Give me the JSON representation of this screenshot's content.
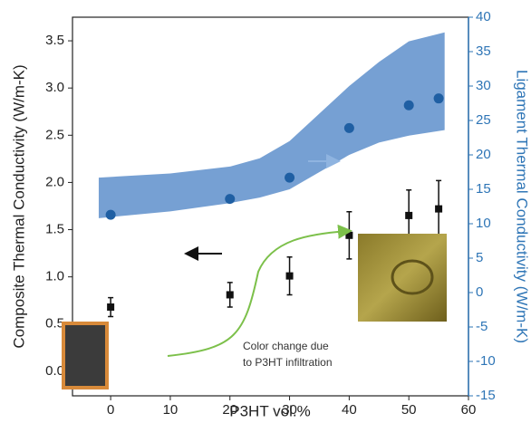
{
  "chart_data": {
    "type": "scatter",
    "xlabel": "P3HT vol.%",
    "ylabel": "Composite Thermal Conductivity (W/m-K)",
    "y2label": "Ligament Thermal Conductivity (W/m-K)",
    "annotation": [
      "Color change due",
      "to P3HT infiltration"
    ],
    "x": [
      0,
      20,
      30,
      40,
      50,
      55
    ],
    "xlim": [
      -6.4,
      60
    ],
    "xticks": [
      0,
      10,
      20,
      30,
      40,
      50,
      60
    ],
    "ylim": [
      -0.26,
      3.75
    ],
    "yticks": [
      {
        "value": 0,
        "label": "0.0"
      },
      0.5,
      {
        "value": 1,
        "label": "1.0"
      },
      1.5,
      {
        "value": 2,
        "label": "2.0"
      },
      2.5,
      {
        "value": 3,
        "label": "3.0"
      },
      3.5
    ],
    "y2lim": [
      -15,
      40
    ],
    "y2ticks": [
      -15,
      -10,
      -5,
      0,
      5,
      10,
      15,
      20,
      25,
      30,
      35,
      40
    ],
    "y2color": "#2e75b6",
    "series": [
      {
        "color": "#111111",
        "marker": "square",
        "values": [
          0.68,
          0.81,
          1.01,
          1.44,
          1.65,
          1.72
        ],
        "errors": [
          0.1,
          0.13,
          0.2,
          0.25,
          0.27,
          0.3
        ]
      },
      {
        "color": "#1f5fa3",
        "marker": "circle",
        "axis": "y2",
        "values": [
          11.3,
          13.6,
          16.7,
          23.9,
          27.2,
          28.2
        ]
      }
    ],
    "band": {
      "color": "#6f9bd1",
      "axis": "y2",
      "x": [
        -2,
        10,
        20,
        25,
        30,
        35,
        40,
        45,
        50,
        56
      ],
      "upper": [
        16.7,
        17.3,
        18.3,
        19.5,
        22,
        26,
        30,
        33.5,
        36.5,
        37.8
      ],
      "lower": [
        10.8,
        11.8,
        13.0,
        13.8,
        15,
        17.5,
        20,
        21.8,
        22.8,
        23.6
      ]
    }
  }
}
